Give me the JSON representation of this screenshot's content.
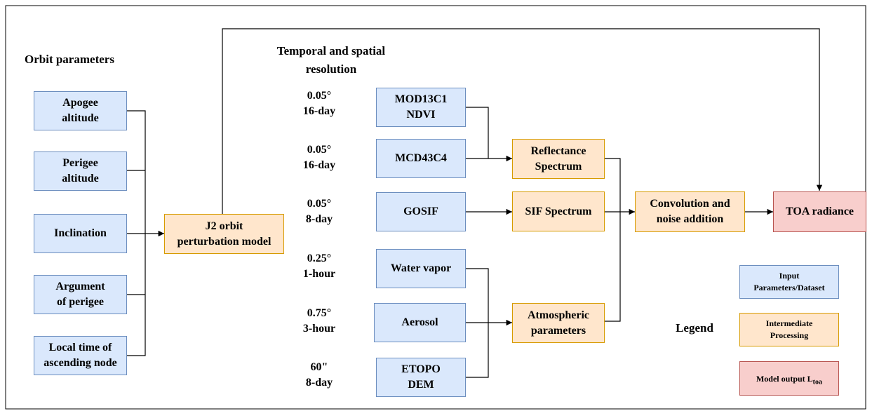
{
  "orbit_parameters": {
    "title": "Orbit parameters",
    "items": [
      {
        "lines": [
          "Apogee",
          "altitude"
        ]
      },
      {
        "lines": [
          "Perigee",
          "altitude"
        ]
      },
      {
        "lines": [
          "Inclination"
        ]
      },
      {
        "lines": [
          "Argument",
          "of perigee"
        ]
      },
      {
        "lines": [
          "Local time of",
          "ascending node"
        ]
      }
    ]
  },
  "orbit_model": {
    "lines": [
      "J2 orbit",
      "perturbation model"
    ]
  },
  "resolution": {
    "title_lines": [
      "Temporal and spatial",
      "resolution"
    ],
    "items": [
      {
        "lines": [
          "0.05°",
          "16-day"
        ]
      },
      {
        "lines": [
          "0.05°",
          "16-day"
        ]
      },
      {
        "lines": [
          "0.05°",
          "8-day"
        ]
      },
      {
        "lines": [
          "0.25°",
          "1-hour"
        ]
      },
      {
        "lines": [
          "0.75°",
          "3-hour"
        ]
      },
      {
        "lines": [
          "60\"",
          "8-day"
        ]
      }
    ]
  },
  "datasets": [
    {
      "lines": [
        "MOD13C1",
        "NDVI"
      ]
    },
    {
      "lines": [
        "MCD43C4"
      ]
    },
    {
      "lines": [
        "GOSIF"
      ]
    },
    {
      "lines": [
        "Water vapor"
      ]
    },
    {
      "lines": [
        "Aerosol"
      ]
    },
    {
      "lines": [
        "ETOPO",
        "DEM"
      ]
    }
  ],
  "intermediate": [
    {
      "lines": [
        "Reflectance",
        "Spectrum"
      ]
    },
    {
      "lines": [
        "SIF Spectrum"
      ]
    },
    {
      "lines": [
        "Atmospheric",
        "parameters"
      ]
    }
  ],
  "convolution": {
    "lines": [
      "Convolution and",
      "noise addition"
    ]
  },
  "output": {
    "lines": [
      "TOA radiance"
    ]
  },
  "legend": {
    "title": "Legend",
    "items": [
      {
        "lines": [
          "Input",
          "Parameters/Dataset"
        ]
      },
      {
        "lines": [
          "Intermediate",
          "Processing"
        ]
      },
      {
        "text": "Model output L",
        "subscript": "toa"
      }
    ]
  }
}
